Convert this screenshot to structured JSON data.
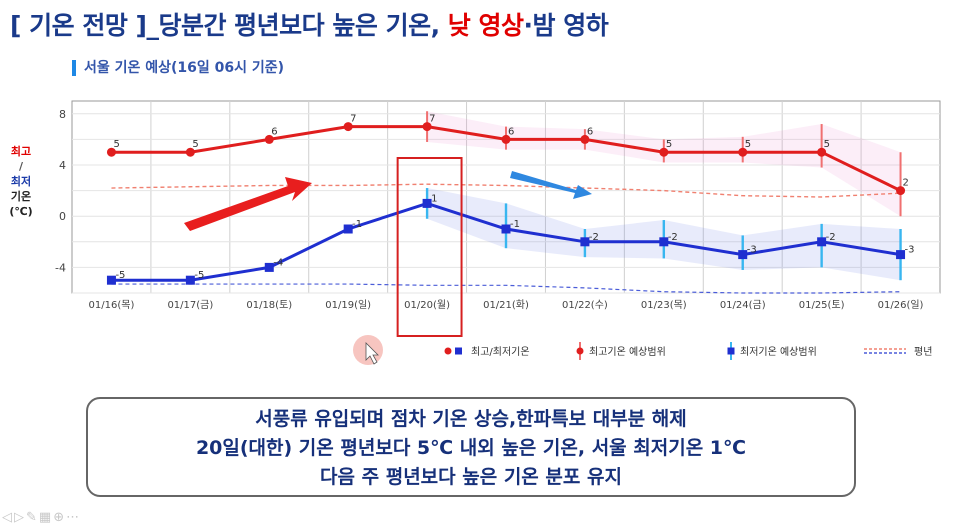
{
  "headline": {
    "part1": "[ 기온 전망 ]_당분간 평년보다 높은 기온, ",
    "day": "낮 영상",
    "dot": "·",
    "night": "밤 영하"
  },
  "subtitle": "서울 기온 예상(16일 06시 기준)",
  "yaxis_label": {
    "hi": "최고",
    "sep": "/",
    "lo": "최저",
    "k": "기온",
    "unit": "(℃)"
  },
  "colors": {
    "high": "#e01e1e",
    "low": "#1f2fd0",
    "high_range": "#f07070",
    "low_range": "#38b6f0",
    "highlight_box": "#d62020",
    "arrow_red": "#e81e1e",
    "arrow_blue": "#2f88e0"
  },
  "legend": {
    "obs": "최고/최저기온",
    "high_range": "최고기온 예상범위",
    "low_range": "최저기온 예상범위",
    "normal": "평년"
  },
  "chart_data": {
    "type": "line",
    "categories": [
      "01/16(목)",
      "01/17(금)",
      "01/18(토)",
      "01/19(일)",
      "01/20(월)",
      "01/21(화)",
      "01/22(수)",
      "01/23(목)",
      "01/24(금)",
      "01/25(토)",
      "01/26(일)"
    ],
    "ylim": [
      -6,
      9
    ],
    "yticks": [
      -4,
      0,
      4,
      8
    ],
    "grid": true,
    "series": [
      {
        "name": "최고기온",
        "values": [
          5,
          5,
          6,
          7,
          7,
          6,
          6,
          5,
          5,
          5,
          2
        ],
        "labels": [
          "5",
          "5",
          "6",
          "7",
          "7",
          "6",
          "6",
          "5",
          "5",
          "5",
          "2"
        ],
        "range": [
          null,
          null,
          null,
          null,
          [
            5.8,
            8.2
          ],
          [
            5.2,
            7.0
          ],
          [
            5.2,
            6.8
          ],
          [
            4.2,
            6.0
          ],
          [
            4.2,
            6.2
          ],
          [
            3.8,
            7.2
          ],
          [
            0.0,
            5.0
          ]
        ]
      },
      {
        "name": "최저기온",
        "values": [
          -5,
          -5,
          -4,
          -1,
          1,
          -1,
          -2,
          -2,
          -3,
          -2,
          -3
        ],
        "labels": [
          "-5",
          "-5",
          "-4",
          "-1",
          "1",
          "-1",
          "-2",
          "-2",
          "-3",
          "-2",
          "-3"
        ],
        "range": [
          null,
          null,
          null,
          null,
          [
            -0.2,
            2.2
          ],
          [
            -2.5,
            1.0
          ],
          [
            -3.2,
            -1.0
          ],
          [
            -3.3,
            -0.3
          ],
          [
            -4.2,
            -1.5
          ],
          [
            -4.0,
            -0.6
          ],
          [
            -5.0,
            -1.0
          ]
        ]
      },
      {
        "name": "평년 최고",
        "values": [
          2.2,
          2.3,
          2.4,
          2.4,
          2.5,
          2.4,
          2.2,
          2.0,
          1.6,
          1.5,
          1.8
        ]
      },
      {
        "name": "평년 최저",
        "values": [
          -5.3,
          -5.3,
          -5.3,
          -5.3,
          -5.4,
          -5.4,
          -5.6,
          -5.9,
          -6.0,
          -6.0,
          -5.9
        ]
      }
    ],
    "highlight_category": "01/20(월)"
  },
  "summary": [
    "서풍류 유입되며 점차 기온 상승,한파특보 대부분 해제",
    "20일(대한) 기온 평년보다 5℃ 내외 높은 기온, 서울 최저기온 1℃",
    "다음 주 평년보다 높은 기온 분포 유지"
  ],
  "player_controls": [
    "play-icon",
    "next-icon",
    "pen-icon",
    "slides-icon",
    "zoom-icon",
    "more-icon"
  ]
}
